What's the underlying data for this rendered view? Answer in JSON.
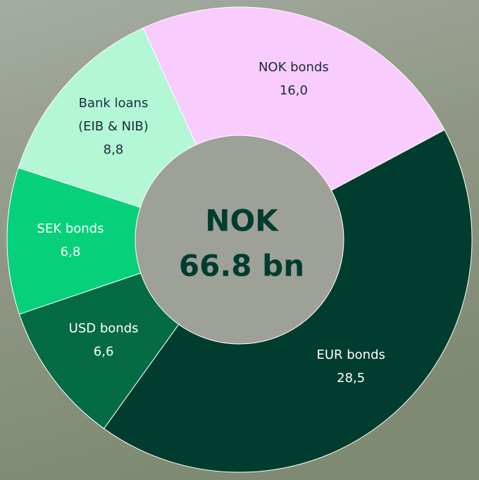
{
  "chart_data": {
    "type": "donut",
    "categories": [
      "NOK bonds",
      "EUR bonds",
      "USD bonds",
      "SEK bonds",
      "Bank loans (EIB & NIB)"
    ],
    "values": [
      16.0,
      28.5,
      6.6,
      6.8,
      8.8
    ],
    "value_labels": [
      "16,0",
      "28,5",
      "6,6",
      "6,8",
      "8,8"
    ],
    "colors": [
      "#f8ccfc",
      "#003d2e",
      "#046b45",
      "#06d17a",
      "#b3f7d6"
    ],
    "center_text": [
      "NOK",
      "66.8 bn"
    ]
  }
}
